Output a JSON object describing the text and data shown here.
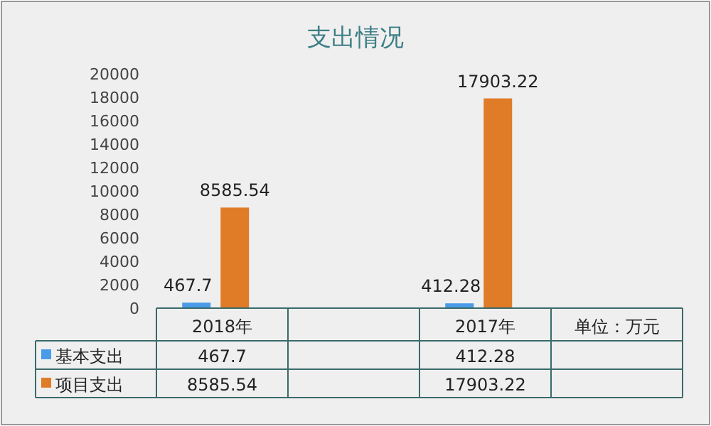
{
  "chart_data": {
    "type": "bar",
    "title": "支出情况",
    "categories": [
      "2018年",
      null,
      "2017年",
      null
    ],
    "series": [
      {
        "name": "基本支出",
        "color": "#4a9be8",
        "values": [
          467.7,
          null,
          412.28,
          null
        ],
        "value_labels": [
          "467.7",
          null,
          "412.28",
          null
        ]
      },
      {
        "name": "项目支出",
        "color": "#e07b28",
        "values": [
          8585.54,
          null,
          17903.22,
          null
        ],
        "value_labels": [
          "8585.54",
          null,
          "17903.22",
          null
        ]
      }
    ],
    "legend": "bottom left",
    "ylim": [
      0,
      20000
    ],
    "yticks": [
      0,
      2000,
      4000,
      6000,
      8000,
      10000,
      12000,
      14000,
      16000,
      18000,
      20000
    ],
    "data_labels": true,
    "grid": false,
    "annotations": [
      "单位：万元"
    ]
  }
}
